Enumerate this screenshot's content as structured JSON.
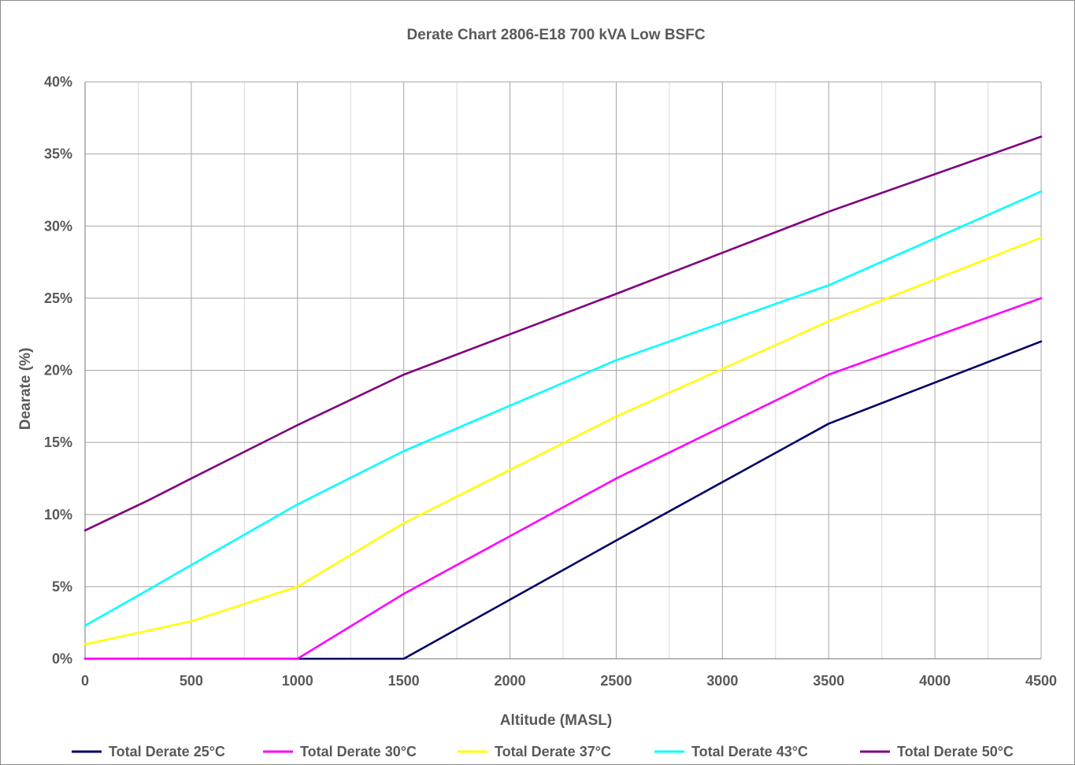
{
  "chart_data": {
    "type": "line",
    "title": "Derate Chart 2806-E18 700 kVA Low BSFC",
    "xlabel": "Altitude (MASL)",
    "ylabel": "Dearate (%)",
    "xlim": [
      0,
      4500
    ],
    "ylim": [
      0,
      40
    ],
    "x_ticks": [
      "0",
      "500",
      "1000",
      "1500",
      "2000",
      "2500",
      "3000",
      "3500",
      "4000",
      "4500"
    ],
    "y_ticks": [
      "0%",
      "5%",
      "10%",
      "15%",
      "20%",
      "25%",
      "30%",
      "35%",
      "40%"
    ],
    "grid": true,
    "legend_position": "bottom",
    "series": [
      {
        "name": "Total Derate 25°C",
        "color": "#000066",
        "points": [
          [
            0,
            0
          ],
          [
            1000,
            0
          ],
          [
            1500,
            0
          ],
          [
            2500,
            8.2
          ],
          [
            3500,
            16.3
          ],
          [
            4500,
            22.0
          ]
        ]
      },
      {
        "name": "Total Derate 30°C",
        "color": "#ff00ff",
        "points": [
          [
            0,
            0
          ],
          [
            1000,
            0
          ],
          [
            1500,
            4.5
          ],
          [
            2500,
            12.5
          ],
          [
            3500,
            19.7
          ],
          [
            4500,
            25.0
          ]
        ]
      },
      {
        "name": "Total Derate 37°C",
        "color": "#ffff00",
        "points": [
          [
            0,
            1.0
          ],
          [
            500,
            2.6
          ],
          [
            1000,
            5.0
          ],
          [
            1500,
            9.4
          ],
          [
            2500,
            16.8
          ],
          [
            3500,
            23.4
          ],
          [
            4500,
            29.2
          ]
        ]
      },
      {
        "name": "Total Derate 43°C",
        "color": "#00ffff",
        "points": [
          [
            0,
            2.3
          ],
          [
            300,
            4.8
          ],
          [
            500,
            6.5
          ],
          [
            1000,
            10.7
          ],
          [
            1500,
            14.4
          ],
          [
            2500,
            20.7
          ],
          [
            3500,
            25.9
          ],
          [
            4500,
            32.4
          ]
        ]
      },
      {
        "name": "Total Derate 50°C",
        "color": "#800080",
        "points": [
          [
            0,
            8.9
          ],
          [
            300,
            11.0
          ],
          [
            500,
            12.5
          ],
          [
            1000,
            16.2
          ],
          [
            1500,
            19.7
          ],
          [
            2500,
            25.3
          ],
          [
            3500,
            31.0
          ],
          [
            4500,
            36.2
          ]
        ]
      }
    ]
  }
}
